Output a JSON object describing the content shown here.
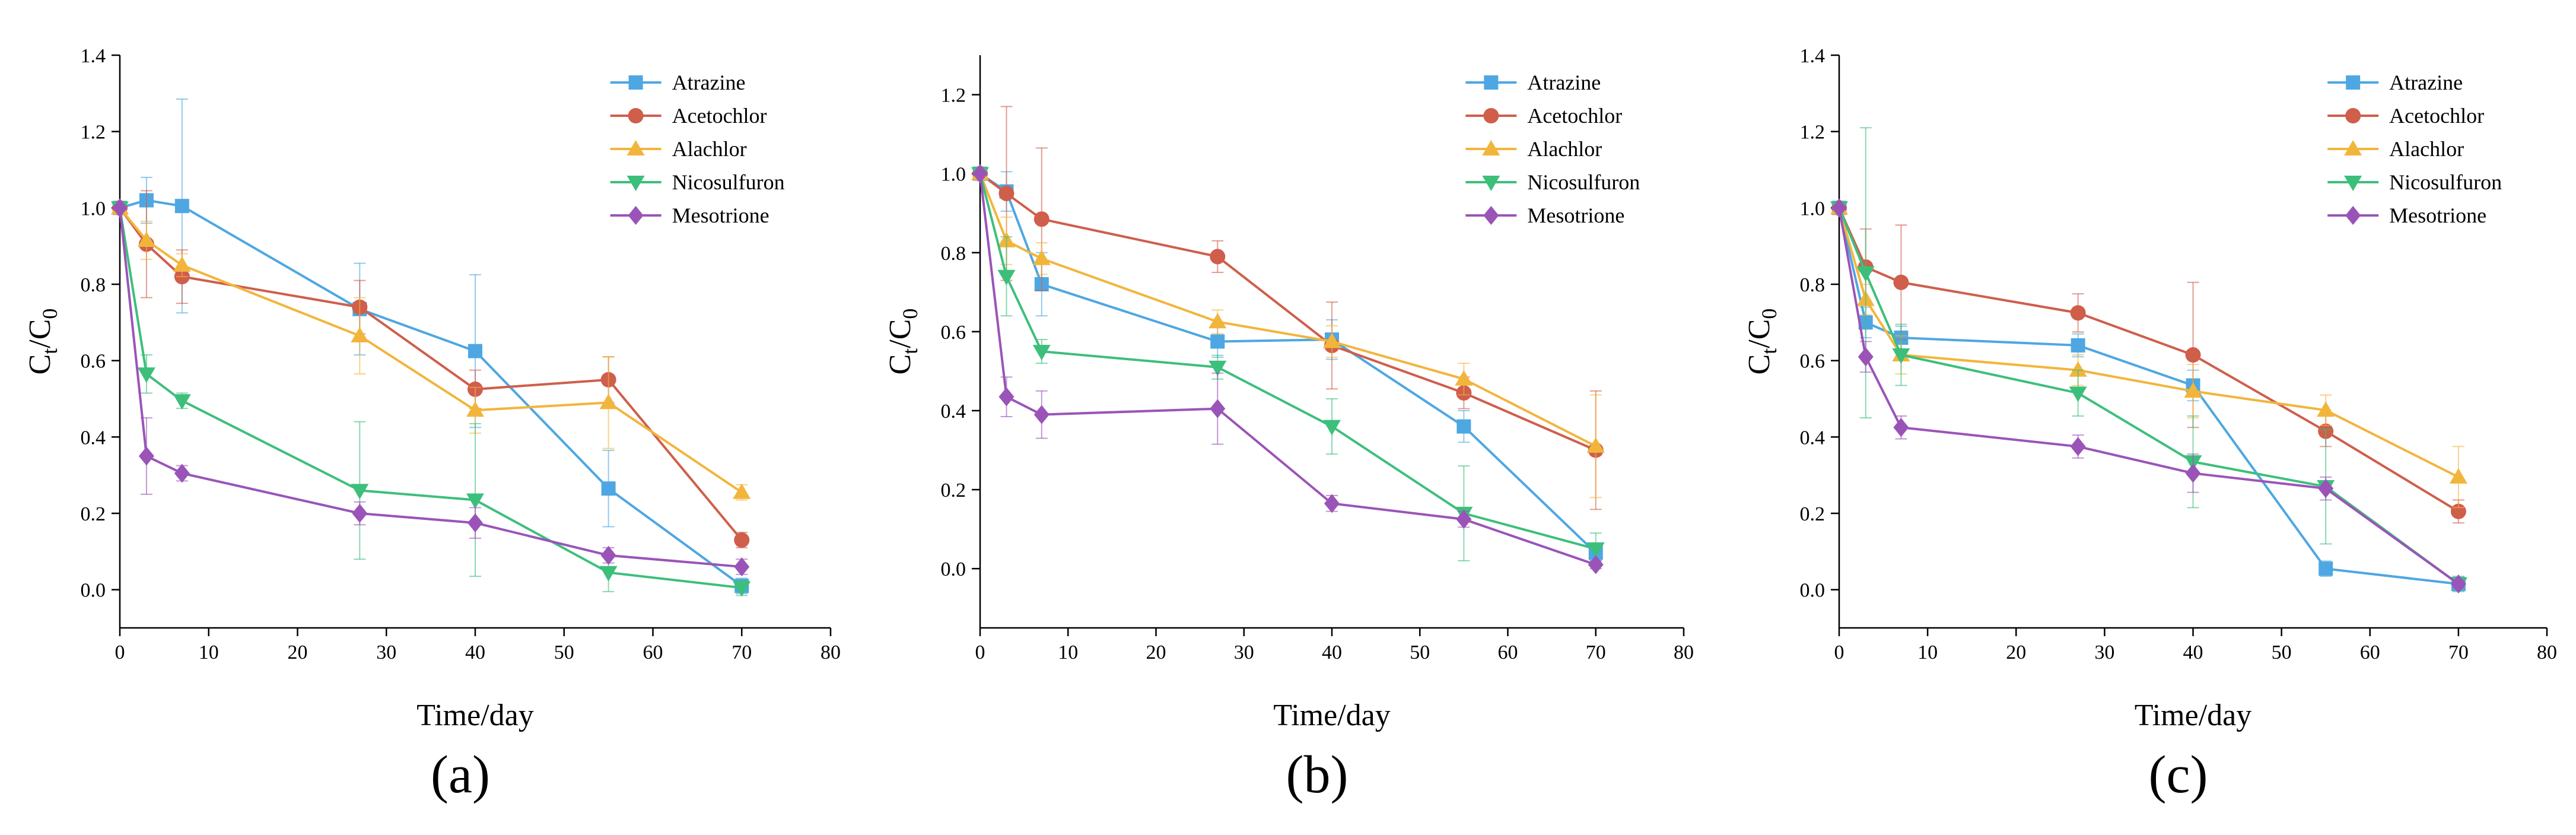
{
  "series_styles": [
    {
      "name": "Atrazine",
      "color": "#4ea7e2",
      "marker": "square"
    },
    {
      "name": "Acetochlor",
      "color": "#cf5e4b",
      "marker": "circle"
    },
    {
      "name": "Alachlor",
      "color": "#f2b53c",
      "marker": "triangle-up"
    },
    {
      "name": "Nicosulfuron",
      "color": "#3dbf7c",
      "marker": "triangle-down"
    },
    {
      "name": "Mesotrione",
      "color": "#9a54b8",
      "marker": "diamond"
    }
  ],
  "chart_data": [
    {
      "type": "line",
      "panel_label": "(a)",
      "xlabel": "Time/day",
      "ylabel": "Ct/C0",
      "xlim": [
        0,
        80
      ],
      "ylim": [
        -0.1,
        1.4
      ],
      "xticks": [
        "0",
        "10",
        "20",
        "30",
        "40",
        "50",
        "60",
        "70",
        "80"
      ],
      "yticks": [
        "0.0",
        "0.2",
        "0.4",
        "0.6",
        "0.8",
        "1.0",
        "1.2",
        "1.4"
      ],
      "legend_position": "top-right",
      "series": [
        {
          "name": "Atrazine",
          "x": [
            0,
            3,
            7,
            27,
            40,
            55,
            70
          ],
          "y": [
            1.0,
            1.02,
            1.005,
            0.735,
            0.625,
            0.265,
            0.01
          ],
          "err": [
            0,
            0.06,
            0.28,
            0.12,
            0.2,
            0.1,
            0.02
          ]
        },
        {
          "name": "Acetochlor",
          "x": [
            0,
            3,
            7,
            27,
            40,
            55,
            70
          ],
          "y": [
            1.0,
            0.905,
            0.82,
            0.74,
            0.525,
            0.55,
            0.13
          ],
          "err": [
            0,
            0.14,
            0.07,
            0.07,
            0.05,
            0.06,
            0.02
          ]
        },
        {
          "name": "Alachlor",
          "x": [
            0,
            3,
            7,
            27,
            40,
            55,
            70
          ],
          "y": [
            1.0,
            0.915,
            0.85,
            0.665,
            0.47,
            0.49,
            0.255
          ],
          "err": [
            0,
            0.05,
            0.03,
            0.1,
            0.06,
            0.12,
            0.02
          ]
        },
        {
          "name": "Nicosulfuron",
          "x": [
            0,
            3,
            7,
            27,
            40,
            55,
            70
          ],
          "y": [
            1.0,
            0.565,
            0.495,
            0.26,
            0.235,
            0.045,
            0.005
          ],
          "err": [
            0,
            0.05,
            0.02,
            0.18,
            0.2,
            0.05,
            0.02
          ]
        },
        {
          "name": "Mesotrione",
          "x": [
            0,
            3,
            7,
            27,
            40,
            55,
            70
          ],
          "y": [
            1.0,
            0.35,
            0.305,
            0.2,
            0.175,
            0.09,
            0.06
          ],
          "err": [
            0,
            0.1,
            0.02,
            0.03,
            0.04,
            0.02,
            0.02
          ]
        }
      ]
    },
    {
      "type": "line",
      "panel_label": "(b)",
      "xlabel": "Time/day",
      "ylabel": "Ct/C0",
      "xlim": [
        0,
        80
      ],
      "ylim": [
        -0.15,
        1.3
      ],
      "xticks": [
        "0",
        "10",
        "20",
        "30",
        "40",
        "50",
        "60",
        "70",
        "80"
      ],
      "yticks": [
        "0.0",
        "0.2",
        "0.4",
        "0.6",
        "0.8",
        "1.0",
        "1.2"
      ],
      "legend_position": "top-right",
      "series": [
        {
          "name": "Atrazine",
          "x": [
            0,
            3,
            7,
            27,
            40,
            55,
            70
          ],
          "y": [
            1.0,
            0.955,
            0.72,
            0.575,
            0.58,
            0.36,
            0.04
          ],
          "err": [
            0,
            0.05,
            0.08,
            0.04,
            0.05,
            0.04,
            0.02
          ]
        },
        {
          "name": "Acetochlor",
          "x": [
            0,
            3,
            7,
            27,
            40,
            55,
            70
          ],
          "y": [
            1.0,
            0.95,
            0.885,
            0.79,
            0.565,
            0.445,
            0.3
          ],
          "err": [
            0,
            0.22,
            0.18,
            0.04,
            0.11,
            0.04,
            0.15
          ]
        },
        {
          "name": "Alachlor",
          "x": [
            0,
            3,
            7,
            27,
            40,
            55,
            70
          ],
          "y": [
            1.0,
            0.83,
            0.785,
            0.625,
            0.575,
            0.48,
            0.31
          ],
          "err": [
            0,
            0.06,
            0.04,
            0.03,
            0.04,
            0.04,
            0.13
          ]
        },
        {
          "name": "Nicosulfuron",
          "x": [
            0,
            3,
            7,
            27,
            40,
            55,
            70
          ],
          "y": [
            1.0,
            0.74,
            0.55,
            0.51,
            0.36,
            0.14,
            0.05
          ],
          "err": [
            0,
            0.1,
            0.03,
            0.03,
            0.07,
            0.12,
            0.04
          ]
        },
        {
          "name": "Mesotrione",
          "x": [
            0,
            3,
            7,
            27,
            40,
            55,
            70
          ],
          "y": [
            1.0,
            0.435,
            0.39,
            0.405,
            0.165,
            0.125,
            0.01
          ],
          "err": [
            0,
            0.05,
            0.06,
            0.09,
            0.02,
            0.02,
            0.01
          ]
        }
      ]
    },
    {
      "type": "line",
      "panel_label": "(c)",
      "xlabel": "Time/day",
      "ylabel": "Ct/C0",
      "xlim": [
        0,
        80
      ],
      "ylim": [
        -0.1,
        1.4
      ],
      "xticks": [
        "0",
        "10",
        "20",
        "30",
        "40",
        "50",
        "60",
        "70",
        "80"
      ],
      "yticks": [
        "0.0",
        "0.2",
        "0.4",
        "0.6",
        "0.8",
        "1.0",
        "1.2",
        "1.4"
      ],
      "legend_position": "top-right",
      "series": [
        {
          "name": "Atrazine",
          "x": [
            0,
            3,
            7,
            27,
            40,
            55,
            70
          ],
          "y": [
            1.0,
            0.7,
            0.66,
            0.64,
            0.535,
            0.055,
            0.015
          ],
          "err": [
            0,
            0.04,
            0.03,
            0.03,
            0.04,
            0.02,
            0.01
          ]
        },
        {
          "name": "Acetochlor",
          "x": [
            0,
            3,
            7,
            27,
            40,
            55,
            70
          ],
          "y": [
            1.0,
            0.845,
            0.805,
            0.725,
            0.615,
            0.415,
            0.205
          ],
          "err": [
            0,
            0.1,
            0.15,
            0.05,
            0.19,
            0.04,
            0.03
          ]
        },
        {
          "name": "Alachlor",
          "x": [
            0,
            3,
            7,
            27,
            40,
            55,
            70
          ],
          "y": [
            1.0,
            0.76,
            0.615,
            0.575,
            0.52,
            0.47,
            0.295
          ],
          "err": [
            0,
            0.04,
            0.05,
            0.04,
            0.07,
            0.04,
            0.08
          ]
        },
        {
          "name": "Nicosulfuron",
          "x": [
            0,
            3,
            7,
            27,
            40,
            55,
            70
          ],
          "y": [
            1.0,
            0.83,
            0.615,
            0.515,
            0.335,
            0.27,
            0.015
          ],
          "err": [
            0,
            0.38,
            0.08,
            0.06,
            0.12,
            0.15,
            0.02
          ]
        },
        {
          "name": "Mesotrione",
          "x": [
            0,
            3,
            7,
            27,
            40,
            55,
            70
          ],
          "y": [
            1.0,
            0.61,
            0.425,
            0.375,
            0.305,
            0.265,
            0.015
          ],
          "err": [
            0,
            0.04,
            0.03,
            0.03,
            0.05,
            0.03,
            0.01
          ]
        }
      ]
    }
  ]
}
